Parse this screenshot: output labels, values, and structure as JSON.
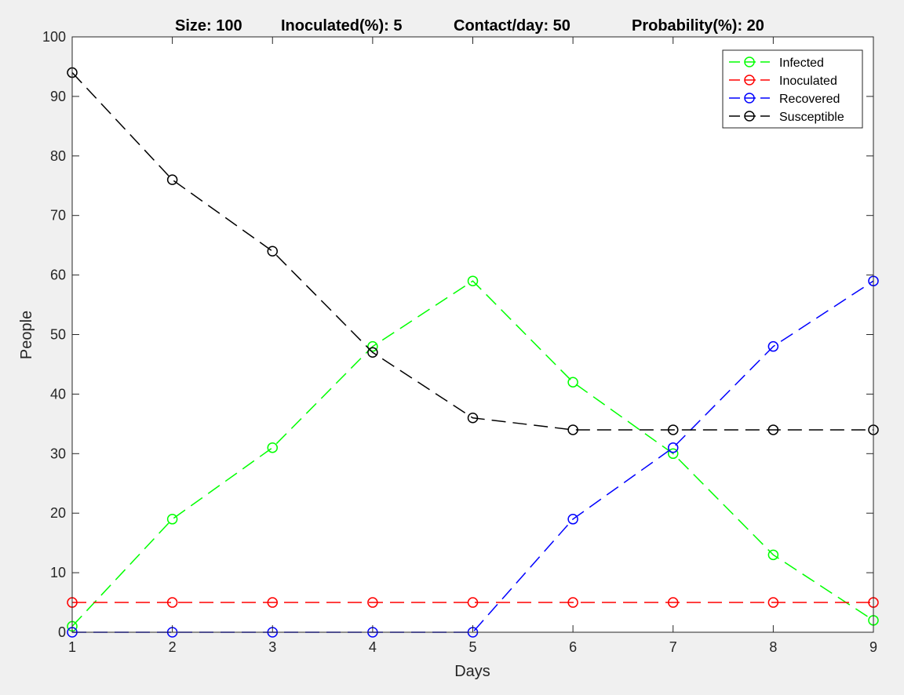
{
  "chart_data": {
    "type": "line",
    "title_parts": [
      "Size: 100",
      "Inoculated(%): 5",
      "Contact/day: 50",
      "Probability(%): 20"
    ],
    "xlabel": "Days",
    "ylabel": "People",
    "x": [
      1,
      2,
      3,
      4,
      5,
      6,
      7,
      8,
      9
    ],
    "xlim": [
      1,
      9
    ],
    "ylim": [
      0,
      100
    ],
    "xticks": [
      "1",
      "2",
      "3",
      "4",
      "5",
      "6",
      "7",
      "8",
      "9"
    ],
    "yticks": [
      "0",
      "10",
      "20",
      "30",
      "40",
      "50",
      "60",
      "70",
      "80",
      "90",
      "100"
    ],
    "grid": false,
    "legend_position": "top-right",
    "line_style": "dashed",
    "marker": "circle",
    "series": [
      {
        "name": "Infected",
        "color": "#00ff00",
        "values": [
          1,
          19,
          31,
          48,
          59,
          42,
          30,
          13,
          2
        ]
      },
      {
        "name": "Inoculated",
        "color": "#ff0000",
        "values": [
          5,
          5,
          5,
          5,
          5,
          5,
          5,
          5,
          5
        ]
      },
      {
        "name": "Recovered",
        "color": "#0000ff",
        "values": [
          0,
          0,
          0,
          0,
          0,
          19,
          31,
          48,
          59
        ]
      },
      {
        "name": "Susceptible",
        "color": "#000000",
        "values": [
          94,
          76,
          64,
          47,
          36,
          34,
          34,
          34,
          34
        ]
      }
    ]
  }
}
